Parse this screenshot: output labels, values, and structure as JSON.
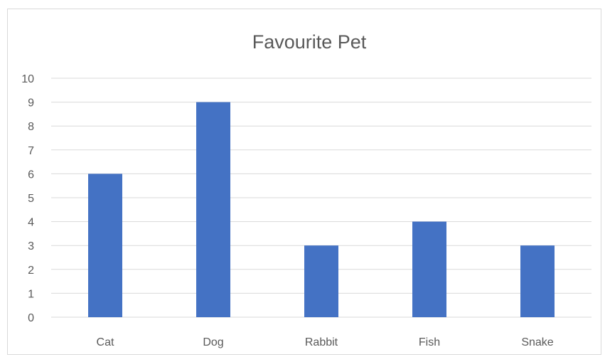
{
  "chart_data": {
    "type": "bar",
    "title": "Favourite Pet",
    "xlabel": "",
    "ylabel": "",
    "categories": [
      "Cat",
      "Dog",
      "Rabbit",
      "Fish",
      "Snake"
    ],
    "values": [
      6,
      9,
      3,
      4,
      3
    ],
    "ylim": [
      0,
      10
    ],
    "yticks": [
      "0",
      "1",
      "2",
      "3",
      "4",
      "5",
      "6",
      "7",
      "8",
      "9",
      "10"
    ],
    "grid": true,
    "legend": "none",
    "bar_color": "#4472c4",
    "gridline_color": "#d9d9d9",
    "text_color": "#595959"
  }
}
